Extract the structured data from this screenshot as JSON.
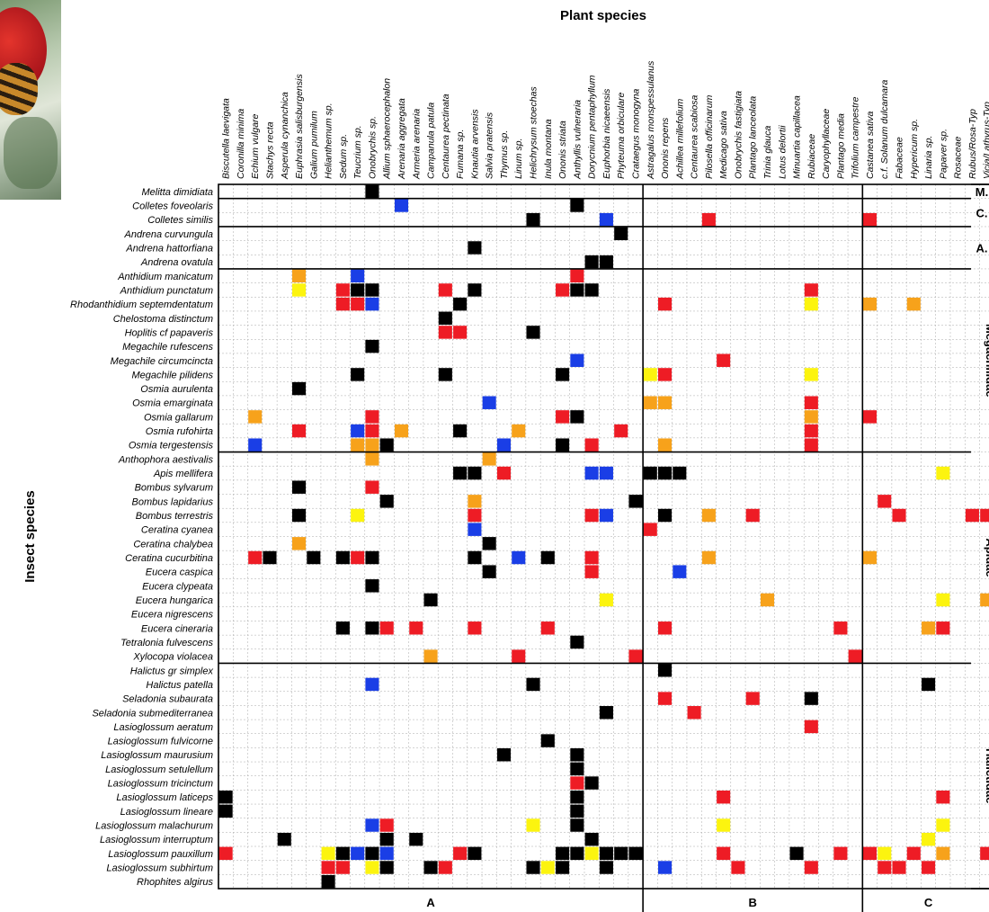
{
  "chart_data": {
    "type": "heatmap",
    "title": "Plant species",
    "ylabel": "Insect species",
    "plants": [
      "Biscutella laevigata",
      "Coronilla minima",
      "Echium vulgare",
      "Stachys recta",
      "Asperula cynanchica",
      "Euphrasia salisburgensis",
      "Galium pumilum",
      "Helianthemum sp.",
      "Sedum sp.",
      "Teucrium sp.",
      "Onobrychis sp.",
      "Allium sphaerocephalon",
      "Arenaria aggregata",
      "Armeria arenaria",
      "Campanula patula",
      "Centaurea pectinata",
      "Fumana sp.",
      "Knautia arvensis",
      "Salvia pratensis",
      "Thymus sp.",
      "Linum sp.",
      "Helichrysum stoechas",
      "Inula montana",
      "Ononis striata",
      "Anthyllis vulneraria",
      "Dorycnium pentaphyllum",
      "Euphorbia nicaeensis",
      "Phyteuma orbiculare",
      "Crataegus monogyna",
      "Astragalus monspessulanus",
      "Ononis repens",
      "Achillea millefolium",
      "Centaurea scabiosa",
      "Pilosella officinarum",
      "Medicago sativa",
      "Onobrychis fastigiata",
      "Plantago lanceolata",
      "Trinia glauca",
      "Lotus delortii",
      "Minuartia capillacea",
      "Rubiaceae",
      "Caryophyllaceae",
      "Plantago media",
      "Trifolium campestre",
      "Castanea sativa",
      "c.f. Solanum dulcamara",
      "Fabaceae",
      "Hypericum sp.",
      "Linaria sp.",
      "Papaver sp.",
      "Rosaceae",
      "Rubus/Rosa-Typ",
      "Vicia/Lathyrus-Typ"
    ],
    "insects": [
      "Melitta dimidiata",
      "Colletes foveolaris",
      "Colletes similis",
      "Andrena curvungula",
      "Andrena hattorfiana",
      "Andrena ovatula",
      "Anthidium manicatum",
      "Anthidium punctatum",
      "Rhodanthidium septemdentatum",
      "Chelostoma distinctum",
      "Hoplitis cf papaveris",
      "Megachile rufescens",
      "Megachile circumcincta",
      "Megachile pilidens",
      "Osmia aurulenta",
      "Osmia emarginata",
      "Osmia gallarum",
      "Osmia rufohirta",
      "Osmia tergestensis",
      "Anthophora aestivalis",
      "Apis mellifera",
      "Bombus sylvarum",
      "Bombus lapidarius",
      "Bombus terrestris",
      "Ceratina cyanea",
      "Ceratina chalybea",
      "Ceratina cucurbitina",
      "Eucera caspica",
      "Eucera clypeata",
      "Eucera hungarica",
      "Eucera nigrescens",
      "Eucera cineraria",
      "Tetralonia fulvescens",
      "Xylocopa violacea",
      "Halictus gr simplex",
      "Halictus patella",
      "Seladonia subaurata",
      "Seladonia submediterranea",
      "Lasioglossum aeratum",
      "Lasioglossum fulvicorne",
      "Lasioglossum maurusium",
      "Lasioglossum setulellum",
      "Lasioglossum tricinctum",
      "Lasioglossum laticeps",
      "Lasioglossum lineare",
      "Lasioglossum malachurum",
      "Lasioglossum interruptum",
      "Lasioglossum pauxillum",
      "Lasioglossum subhirtum",
      "Rhophites algirus"
    ],
    "families": [
      {
        "label": "M.",
        "start": 0,
        "end": 0
      },
      {
        "label": "C.",
        "start": 1,
        "end": 2
      },
      {
        "label": "A.",
        "start": 3,
        "end": 5
      },
      {
        "label": "Megachilidae",
        "start": 6,
        "end": 18
      },
      {
        "label": "Apidae",
        "start": 19,
        "end": 33
      },
      {
        "label": "Halictidae",
        "start": 34,
        "end": 49
      }
    ],
    "groups": [
      {
        "label": "A",
        "start": 0,
        "end": 28
      },
      {
        "label": "B",
        "start": 29,
        "end": 43
      },
      {
        "label": "C",
        "start": 44,
        "end": 52
      }
    ],
    "colors": {
      "K": "#000000",
      "R": "#ee1c25",
      "O": "#f7a21b",
      "Y": "#fcf40f",
      "B": "#1a3ee6",
      "grid": "#aaaaaa"
    },
    "cells": [
      "..........K..........................................",
      "............B...........K............................",
      ".....................K....B......R..........R........",
      "...........................K.........................",
      ".................K...................................",
      ".........................KK..........................",
      ".....O...B..............R............................",
      ".....Y..RKK....R.K.....RKK..............R............",
      "........RRB.....K.............R.........Y...O..O.....",
      "...............K.....................................",
      "...............RR....K...............................",
      "..........K..........................................",
      "........................B.........R..................",
      ".........K.....K.......K.....YR.........Y............",
      ".....K...............................................",
      "..................B..........OO.........R............",
      "..O.......R............RK...............O...R........",
      ".....R...BR.O...K...O......R............R............",
      "..B......OOK.......B...K.R....O.........R............",
      "..........O.......O..................................",
      "................KK.R.....BB..KKK.................Y...",
      ".....K....R...........................................",
      "...........K.....O..........K................R.......",
      ".....K...Y.......R.......RB...K..O..R.........R....RR",
      ".................B...........R.......................",
      ".....O............K..................................",
      "..RK..K.KRK......K..B.K..R.......O..........O........",
      "..................K......R.....B.....................",
      "..........K..........................................",
      "..............K...........Y..........O...........Y..O.",
      ".......................................................",
      "........K.KR.R...R....R.......R...........R.....OR....",
      "........................K............................",
      "..............O.....R.......R..............R..........",
      "..............................K......................",
      "..........B..........K..........................K....",
      "..............................R.....R...K............",
      "..........................K.....R....................",
      "........................................R............",
      "......................K..............................",
      "...................K....K............................",
      "........................K............................",
      "........................RK...........................",
      "K.......................K.........R..............R...",
      "K.......................K............................",
      "..........BR.........Y..K.........Y..............Y...",
      "....K......K.K...........K......................Y....",
      "R......YKBKB....RK.....KKYKKK.....R....K..R.RY.R.O..R.",
      ".......RR.YK..KR.....KYK..K...B....R....R....RR.R.....O",
      ".......K............................................."
    ]
  }
}
